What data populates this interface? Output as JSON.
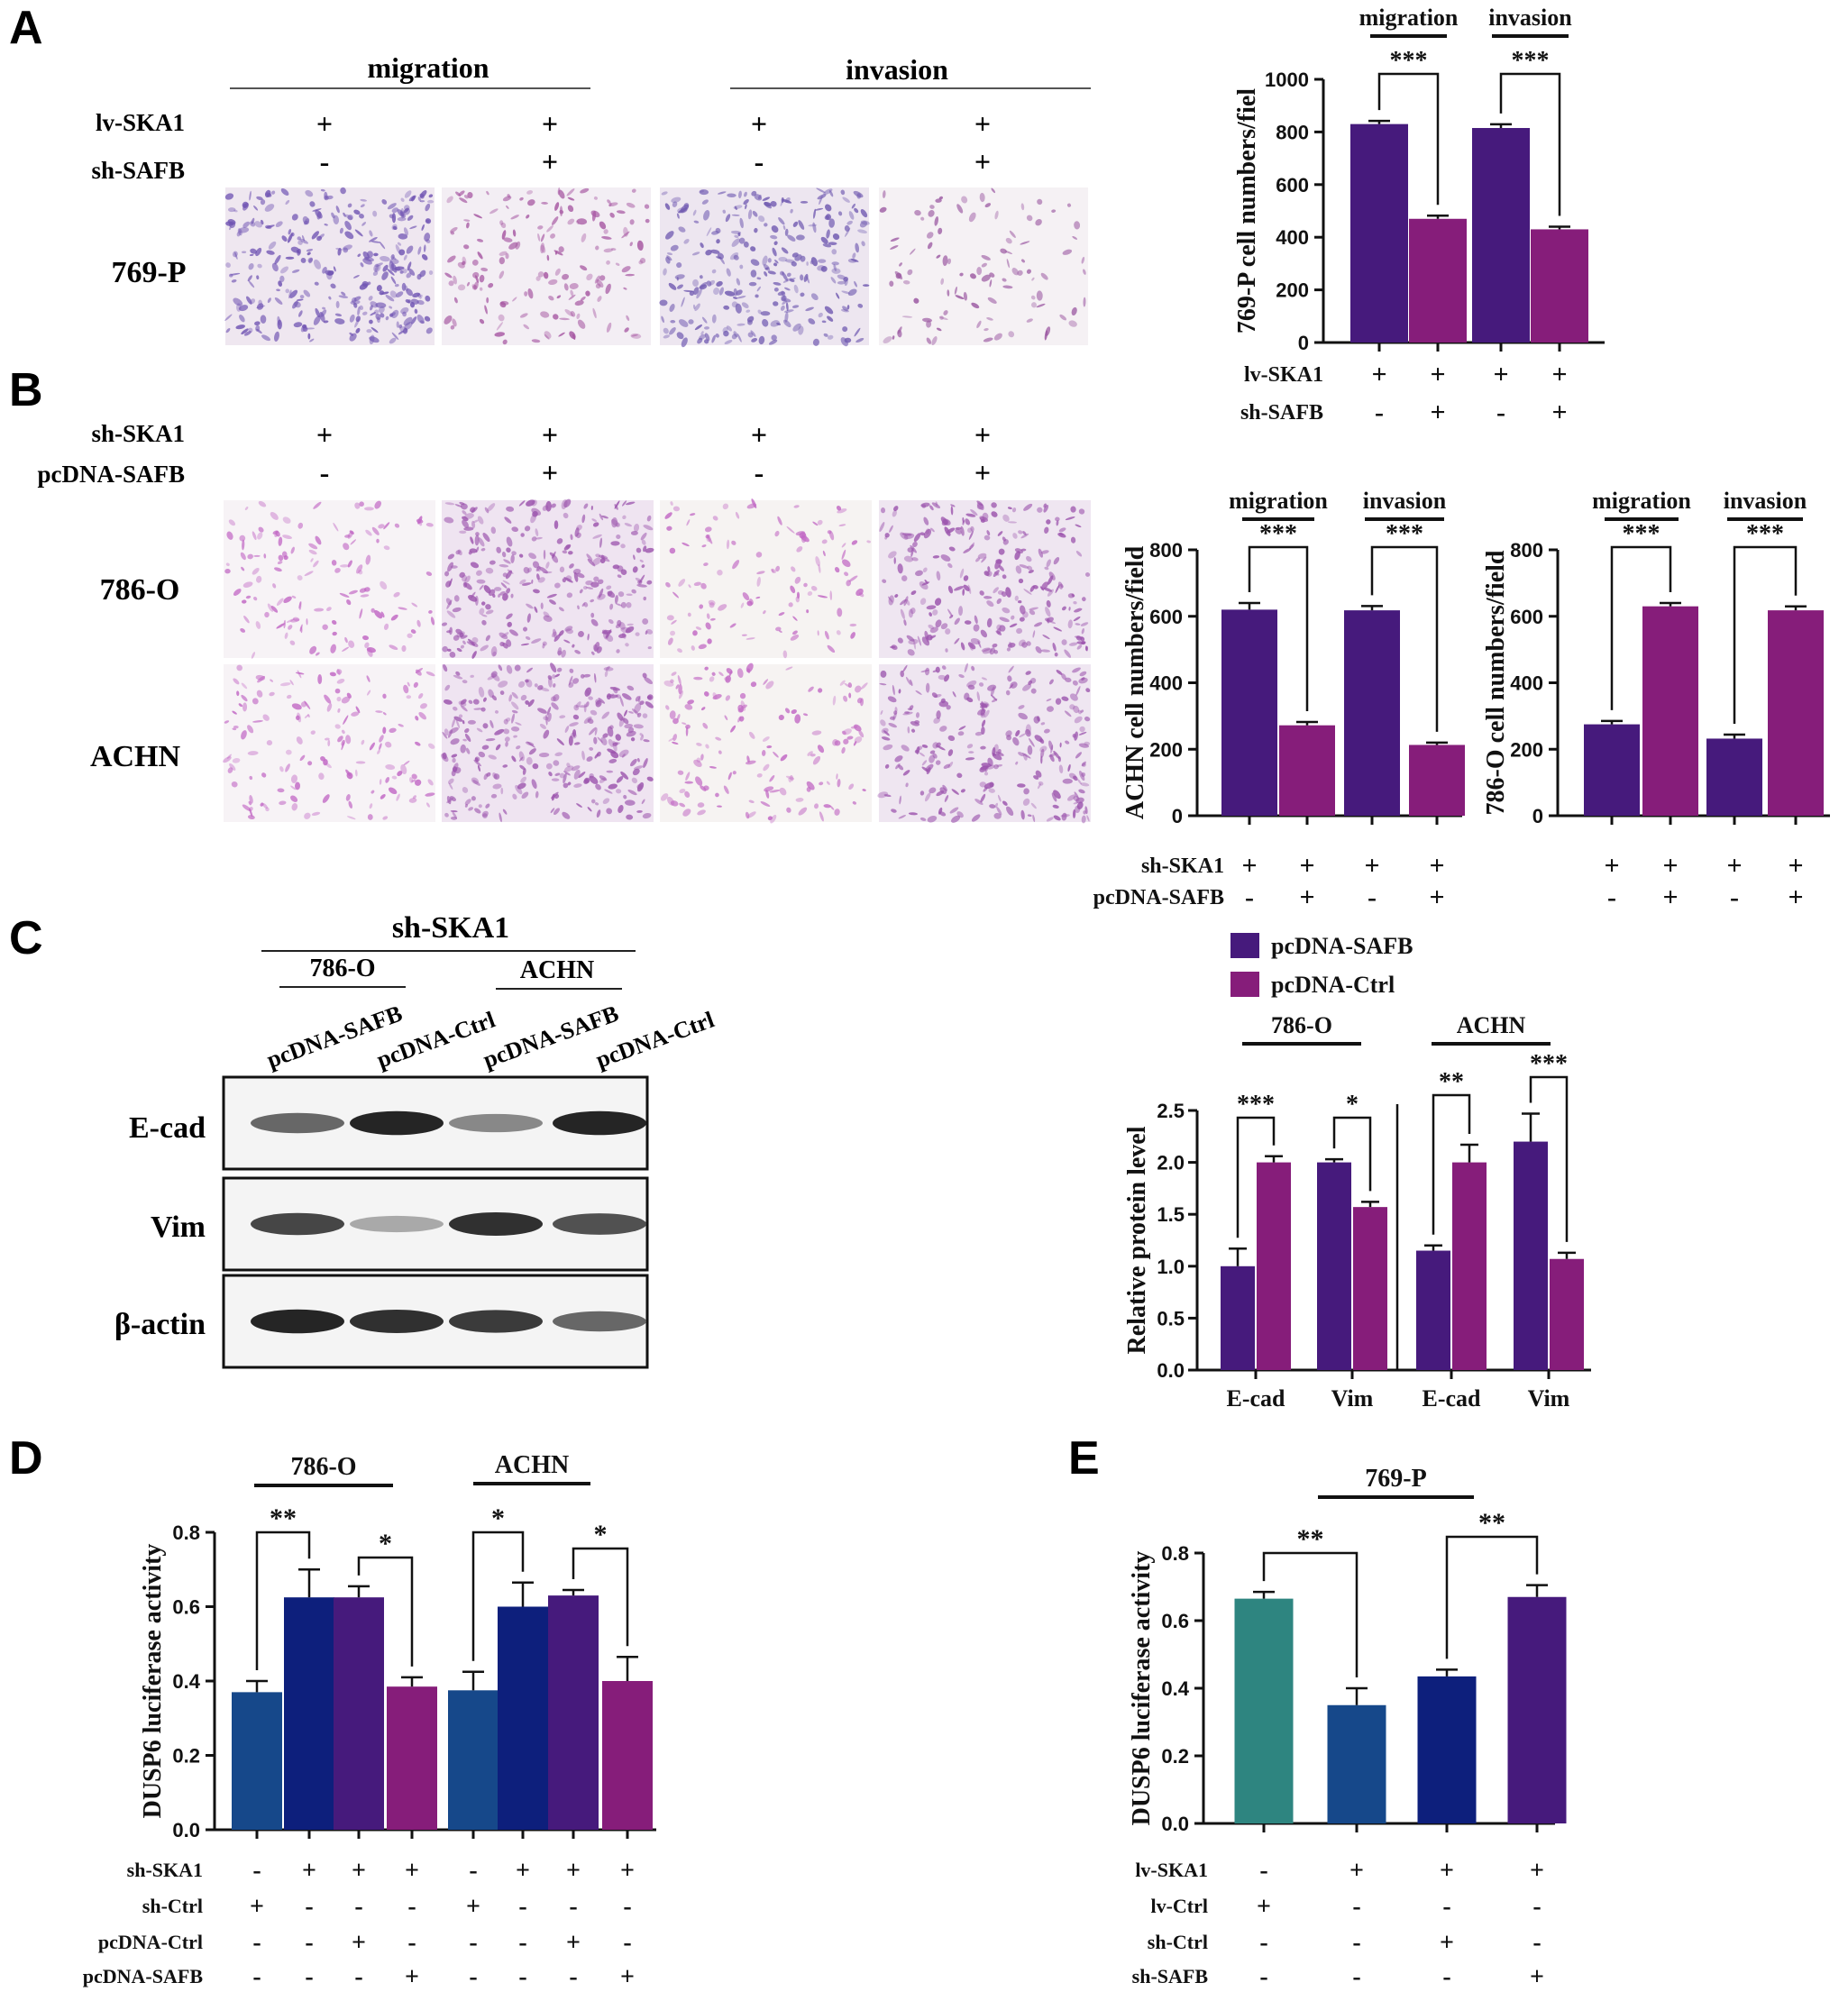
{
  "panels": {
    "A": {
      "letter": "A",
      "headers": [
        "migration",
        "invasion"
      ],
      "row_labels": [
        "lv-SKA1",
        "sh-SAFB"
      ],
      "signs": [
        [
          "+",
          "+",
          "+",
          "+"
        ],
        [
          "-",
          "+",
          "-",
          "+"
        ]
      ],
      "cell_line": "769-P",
      "micrograph_density": [
        0.95,
        0.5,
        0.85,
        0.3
      ],
      "micrograph_colors": [
        "#5a3aa8",
        "#9a3f95",
        "#5b42a6",
        "#8a3c92"
      ]
    },
    "B": {
      "letter": "B",
      "row_labels": [
        "sh-SKA1",
        "pcDNA-SAFB"
      ],
      "signs": [
        [
          "+",
          "+",
          "+",
          "+"
        ],
        [
          "-",
          "+",
          "-",
          "+"
        ]
      ],
      "cell_lines": [
        "786-O",
        "ACHN"
      ],
      "micrograph_density": [
        [
          0.4,
          0.9,
          0.35,
          0.8
        ],
        [
          0.45,
          0.9,
          0.45,
          0.8
        ]
      ],
      "micrograph_colors": [
        "#b84fbc",
        "#8e3ca2"
      ]
    },
    "C": {
      "letter": "C",
      "header": "sh-SKA1",
      "groups": [
        "786-O",
        "ACHN"
      ],
      "lanes": [
        "pcDNA-SAFB",
        "pcDNA-Ctrl",
        "pcDNA-SAFB",
        "pcDNA-Ctrl"
      ],
      "blot_labels": [
        "E-cad",
        "Vim",
        "β-actin"
      ],
      "band_intensity": [
        [
          0.6,
          0.9,
          0.45,
          0.9
        ],
        [
          0.75,
          0.3,
          0.85,
          0.7
        ],
        [
          0.9,
          0.85,
          0.8,
          0.6
        ]
      ]
    },
    "D": {
      "letter": "D"
    },
    "E": {
      "letter": "E"
    }
  },
  "chart_data": [
    {
      "id": "chartA",
      "type": "bar",
      "group_labels": [
        "migration",
        "invasion"
      ],
      "values": [
        830,
        470,
        815,
        430
      ],
      "errors": [
        12,
        12,
        14,
        10
      ],
      "colors": [
        "#461a7c",
        "#861d7a",
        "#461a7c",
        "#861d7a"
      ],
      "ylabel": "769-P cell numbers/fiel",
      "ylim": [
        0,
        1000
      ],
      "yticks": [
        "0",
        "200",
        "400",
        "600",
        "800",
        "1000"
      ],
      "significance": [
        {
          "pair": [
            0,
            1
          ],
          "label": "***"
        },
        {
          "pair": [
            2,
            3
          ],
          "label": "***"
        }
      ],
      "row_labels": [
        "lv-SKA1",
        "sh-SAFB"
      ],
      "signs": [
        [
          "+",
          "+",
          "+",
          "+"
        ],
        [
          "-",
          "+",
          "-",
          "+"
        ]
      ]
    },
    {
      "id": "chartB1",
      "type": "bar",
      "group_labels": [
        "migration",
        "invasion"
      ],
      "values": [
        620,
        272,
        618,
        213
      ],
      "errors": [
        20,
        10,
        13,
        7
      ],
      "colors": [
        "#461a7c",
        "#861d7a",
        "#461a7c",
        "#861d7a"
      ],
      "ylabel": "ACHN cell numbers/field",
      "ylim": [
        0,
        800
      ],
      "yticks": [
        "0",
        "200",
        "400",
        "600",
        "800"
      ],
      "significance": [
        {
          "pair": [
            0,
            1
          ],
          "label": "***"
        },
        {
          "pair": [
            2,
            3
          ],
          "label": "***"
        }
      ],
      "row_labels": [
        "sh-SKA1",
        "pcDNA-SAFB"
      ],
      "signs": [
        [
          "+",
          "+",
          "+",
          "+"
        ],
        [
          "-",
          "+",
          "-",
          "+"
        ]
      ]
    },
    {
      "id": "chartB2",
      "type": "bar",
      "group_labels": [
        "migration",
        "invasion"
      ],
      "values": [
        275,
        630,
        232,
        618
      ],
      "errors": [
        10,
        10,
        12,
        12
      ],
      "colors": [
        "#461a7c",
        "#861d7a",
        "#461a7c",
        "#861d7a"
      ],
      "ylabel": "786-O cell numbers/field",
      "ylim": [
        0,
        800
      ],
      "yticks": [
        "0",
        "200",
        "400",
        "600",
        "800"
      ],
      "significance": [
        {
          "pair": [
            0,
            1
          ],
          "label": "***"
        },
        {
          "pair": [
            2,
            3
          ],
          "label": "***"
        }
      ],
      "signs": [
        [
          "+",
          "+",
          "+",
          "+"
        ],
        [
          "-",
          "+",
          "-",
          "+"
        ]
      ]
    },
    {
      "id": "chartC",
      "type": "bar",
      "legend": [
        {
          "name": "pcDNA-SAFB",
          "color": "#461a7c"
        },
        {
          "name": "pcDNA-Ctrl",
          "color": "#861d7a"
        }
      ],
      "group_labels": [
        "786-O",
        "ACHN"
      ],
      "categories": [
        "E-cad",
        "Vim",
        "E-cad",
        "Vim"
      ],
      "series": [
        {
          "name": "pcDNA-SAFB",
          "values": [
            1.0,
            2.0,
            1.15,
            2.2
          ],
          "errors": [
            0.17,
            0.03,
            0.05,
            0.27
          ]
        },
        {
          "name": "pcDNA-Ctrl",
          "values": [
            2.0,
            1.57,
            2.0,
            1.07
          ],
          "errors": [
            0.06,
            0.05,
            0.17,
            0.06
          ]
        }
      ],
      "significance": [
        "***",
        "*",
        "**",
        "***"
      ],
      "ylabel": "Relative protein level",
      "ylim": [
        0,
        2.5
      ],
      "yticks": [
        "0.0",
        "0.5",
        "1.0",
        "1.5",
        "2.0",
        "2.5"
      ]
    },
    {
      "id": "chartD",
      "type": "bar",
      "group_labels": [
        "786-O",
        "ACHN"
      ],
      "values": [
        0.37,
        0.625,
        0.625,
        0.385,
        0.375,
        0.6,
        0.63,
        0.4
      ],
      "errors": [
        0.03,
        0.075,
        0.03,
        0.025,
        0.05,
        0.065,
        0.015,
        0.065
      ],
      "colors": [
        "#16488a",
        "#0d1f7c",
        "#461a7c",
        "#861d7a",
        "#16488a",
        "#0d1f7c",
        "#461a7c",
        "#861d7a"
      ],
      "ylabel": "DUSP6 luciferase activity",
      "ylim": [
        0,
        0.8
      ],
      "yticks": [
        "0.0",
        "0.2",
        "0.4",
        "0.6",
        "0.8"
      ],
      "significance": [
        {
          "pair": [
            0,
            1
          ],
          "label": "**"
        },
        {
          "pair": [
            2,
            3
          ],
          "label": "*"
        },
        {
          "pair": [
            4,
            5
          ],
          "label": "*"
        },
        {
          "pair": [
            6,
            7
          ],
          "label": "*"
        }
      ],
      "row_labels": [
        "sh-SKA1",
        "sh-Ctrl",
        "pcDNA-Ctrl",
        "pcDNA-SAFB"
      ],
      "signs": [
        [
          "-",
          "+",
          "+",
          "+",
          "-",
          "+",
          "+",
          "+"
        ],
        [
          "+",
          "-",
          "-",
          "-",
          "+",
          "-",
          "-",
          "-"
        ],
        [
          "-",
          "-",
          "+",
          "-",
          "-",
          "-",
          "+",
          "-"
        ],
        [
          "-",
          "-",
          "-",
          "+",
          "-",
          "-",
          "-",
          "+"
        ]
      ]
    },
    {
      "id": "chartE",
      "type": "bar",
      "group_labels": [
        "769-P"
      ],
      "values": [
        0.665,
        0.35,
        0.435,
        0.67
      ],
      "errors": [
        0.02,
        0.05,
        0.02,
        0.035
      ],
      "colors": [
        "#2e8580",
        "#16488a",
        "#0d1f7c",
        "#461a7c"
      ],
      "ylabel": "DUSP6 luciferase activity",
      "ylim": [
        0,
        0.8
      ],
      "yticks": [
        "0.0",
        "0.2",
        "0.4",
        "0.6",
        "0.8"
      ],
      "significance": [
        {
          "pair": [
            0,
            1
          ],
          "label": "**"
        },
        {
          "pair": [
            2,
            3
          ],
          "label": "**"
        }
      ],
      "row_labels": [
        "lv-SKA1",
        "lv-Ctrl",
        "sh-Ctrl",
        "sh-SAFB"
      ],
      "signs": [
        [
          "-",
          "+",
          "+",
          "+"
        ],
        [
          "+",
          "-",
          "-",
          "-"
        ],
        [
          "-",
          "-",
          "+",
          "-"
        ],
        [
          "-",
          "-",
          "-",
          "+"
        ]
      ]
    }
  ]
}
